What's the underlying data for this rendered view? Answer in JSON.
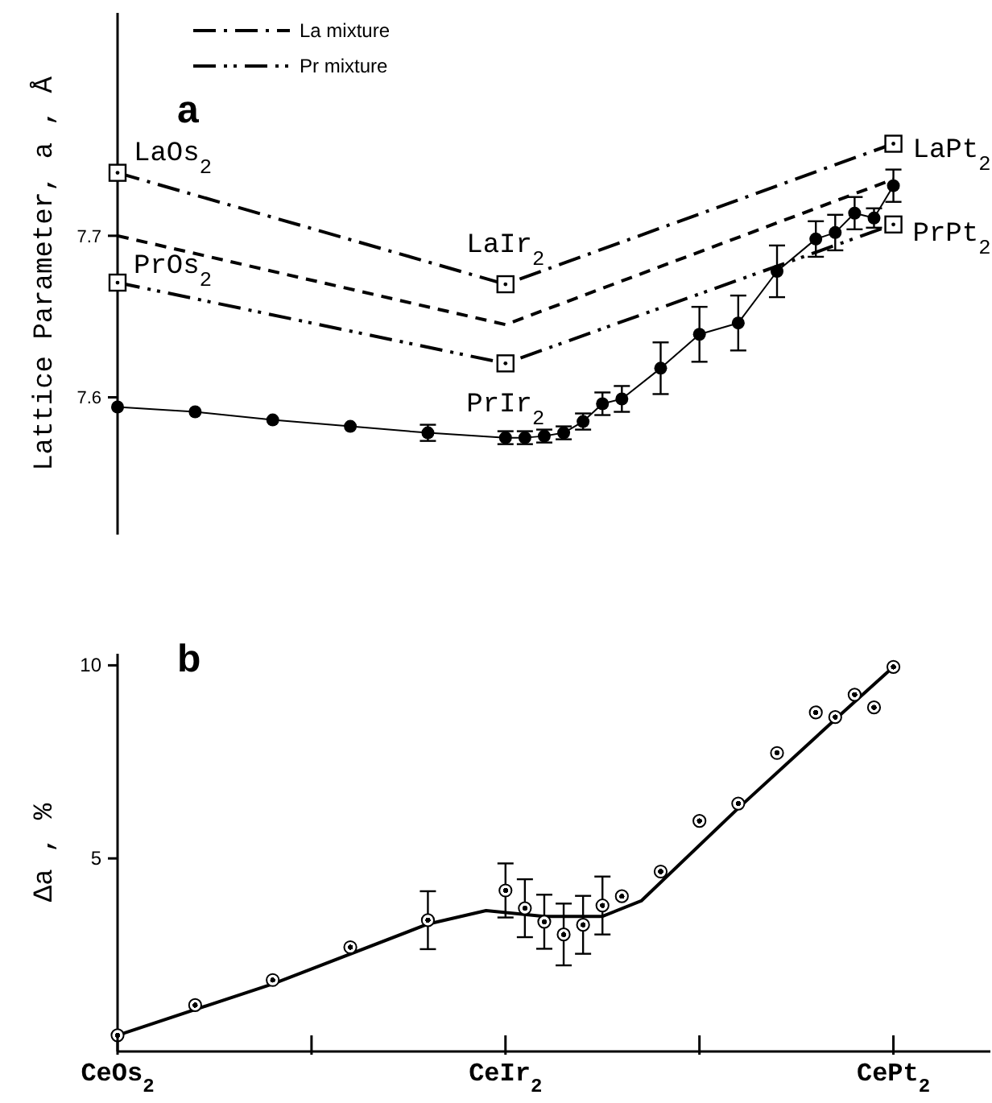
{
  "chart_data": [
    {
      "type": "line",
      "title": "a",
      "ylabel": "Lattice Parameter, a , Å",
      "categories": [
        "CeOs$_{2}$",
        null,
        null,
        null,
        null,
        null,
        null,
        null,
        null,
        null,
        null,
        null,
        null,
        null,
        null,
        null,
        null,
        null,
        null,
        null,
        "CeIr$_{2}$",
        null,
        null,
        null,
        null,
        null,
        null,
        null,
        null,
        null,
        null,
        null,
        null,
        null,
        null,
        null,
        null,
        null,
        null,
        null,
        "CePt$_{2}$",
        null,
        null,
        null,
        null,
        null
      ],
      "ylim": [
        7.515,
        7.838
      ],
      "yticks": [
        7.6,
        7.7
      ],
      "tick_labels": "y",
      "grid": false,
      "legend": "top",
      "series": [
        {
          "name": "La mixture",
          "color": "#000000",
          "line_style": "dashdot",
          "marker": "square",
          "values": [
            7.739,
            null,
            null,
            null,
            null,
            null,
            null,
            null,
            null,
            null,
            null,
            null,
            null,
            null,
            null,
            null,
            null,
            null,
            null,
            null,
            7.67,
            null,
            null,
            null,
            null,
            null,
            null,
            null,
            null,
            null,
            null,
            null,
            null,
            null,
            null,
            null,
            null,
            null,
            null,
            null,
            7.757,
            null,
            null,
            null,
            null,
            null
          ]
        },
        {
          "name": "Pr mixture",
          "color": "#000000",
          "line_style": "dashdotdot",
          "marker": "square",
          "values": [
            7.671,
            null,
            null,
            null,
            null,
            null,
            null,
            null,
            null,
            null,
            null,
            null,
            null,
            null,
            null,
            null,
            null,
            null,
            null,
            null,
            7.621,
            null,
            null,
            null,
            null,
            null,
            null,
            null,
            null,
            null,
            null,
            null,
            null,
            null,
            null,
            null,
            null,
            null,
            null,
            null,
            7.707,
            null,
            null,
            null,
            null,
            null
          ]
        },
        {
          "color": "#000000",
          "line_style": "dashed",
          "marker": "none",
          "values": [
            7.7,
            null,
            null,
            null,
            null,
            null,
            null,
            null,
            null,
            null,
            null,
            null,
            null,
            null,
            null,
            null,
            null,
            null,
            null,
            null,
            7.645,
            null,
            null,
            null,
            null,
            null,
            null,
            null,
            null,
            null,
            null,
            null,
            null,
            null,
            null,
            null,
            null,
            null,
            null,
            null,
            7.735,
            null,
            null,
            null,
            null,
            null
          ]
        },
        {
          "color": "#000000",
          "line_style": "solid",
          "marker": "circle",
          "values": [
            7.594,
            null,
            null,
            null,
            7.591,
            null,
            null,
            null,
            7.586,
            null,
            null,
            null,
            7.582,
            null,
            null,
            null,
            7.578,
            null,
            null,
            null,
            7.575,
            7.575,
            7.576,
            7.578,
            7.585,
            7.596,
            7.599,
            null,
            7.618,
            null,
            7.639,
            null,
            7.646,
            null,
            7.678,
            null,
            7.698,
            7.702,
            7.714,
            7.711,
            7.731,
            null,
            null,
            null,
            null,
            null
          ],
          "errors": [
            null,
            null,
            null,
            null,
            null,
            null,
            null,
            null,
            null,
            null,
            null,
            null,
            null,
            null,
            null,
            null,
            0.005,
            null,
            null,
            null,
            0.004,
            0.004,
            0.004,
            0.004,
            0.005,
            0.007,
            0.008,
            null,
            0.016,
            null,
            0.017,
            null,
            0.017,
            null,
            0.016,
            null,
            0.011,
            0.011,
            0.01,
            0.006,
            0.01,
            null,
            null,
            null,
            null,
            null
          ]
        }
      ],
      "annotations": [
        {
          "text": "LaOs$_{2}$",
          "x": "CeOs$_{2}$",
          "y": 7.739
        },
        {
          "text": "PrOs$_{2}$",
          "x": "CeOs$_{2}$",
          "y": 7.671
        },
        {
          "text": "LaIr$_{2}$",
          "x": "CeIr$_{2}$",
          "y": 7.67
        },
        {
          "text": "PrIr$_{2}$",
          "x": "CeIr$_{2}$",
          "y": 7.621
        },
        {
          "text": "LaPt$_{2}$",
          "x": "CePt$_{2}$",
          "y": 7.757
        },
        {
          "text": "PrPt$_{2}$",
          "x": "CePt$_{2}$",
          "y": 7.707
        }
      ]
    },
    {
      "type": "scatter",
      "title": "b",
      "ylabel": "Δa , %",
      "categories": [
        "CeOs$_{2}$",
        null,
        null,
        null,
        null,
        null,
        null,
        null,
        null,
        null,
        null,
        null,
        null,
        null,
        null,
        null,
        null,
        null,
        null,
        null,
        "CeIr$_{2}$",
        null,
        null,
        null,
        null,
        null,
        null,
        null,
        null,
        null,
        null,
        null,
        null,
        null,
        null,
        null,
        null,
        null,
        null,
        null,
        "CePt$_{2}$",
        null,
        null,
        null,
        null,
        null
      ],
      "ylim": [
        0,
        10.3
      ],
      "yticks": [
        5,
        10
      ],
      "grid": false,
      "series": [
        {
          "color": "#000000",
          "marker": "circle",
          "values": [
            0.42,
            null,
            null,
            null,
            1.2,
            null,
            null,
            null,
            1.85,
            null,
            null,
            null,
            2.7,
            null,
            null,
            null,
            3.4,
            null,
            null,
            null,
            4.17,
            3.71,
            3.36,
            3.03,
            3.28,
            3.78,
            4.02,
            null,
            4.66,
            null,
            5.97,
            null,
            6.42,
            null,
            7.73,
            null,
            8.78,
            8.66,
            9.24,
            8.91,
            9.96,
            null,
            null,
            null,
            null,
            null
          ],
          "errors": [
            null,
            null,
            null,
            null,
            null,
            null,
            null,
            null,
            null,
            null,
            null,
            null,
            null,
            null,
            null,
            null,
            0.75,
            null,
            null,
            null,
            0.7,
            0.75,
            0.7,
            0.8,
            0.75,
            0.75,
            null,
            null,
            null,
            null,
            null,
            null,
            null,
            null,
            null,
            null,
            null,
            null,
            null,
            null,
            null,
            null,
            null,
            null,
            null,
            null
          ]
        },
        {
          "type": "line",
          "color": "#000000",
          "line_style": "solid",
          "marker": "none",
          "values": [
            0.42,
            null,
            null,
            null,
            null,
            null,
            null,
            null,
            1.75,
            null,
            null,
            null,
            null,
            null,
            null,
            null,
            3.3,
            null,
            null,
            3.65,
            null,
            null,
            3.5,
            null,
            null,
            3.5,
            null,
            3.9,
            null,
            null,
            null,
            null,
            6.3,
            null,
            null,
            null,
            null,
            8.6,
            null,
            null,
            9.96,
            null,
            null,
            null,
            null,
            null
          ]
        }
      ]
    }
  ]
}
